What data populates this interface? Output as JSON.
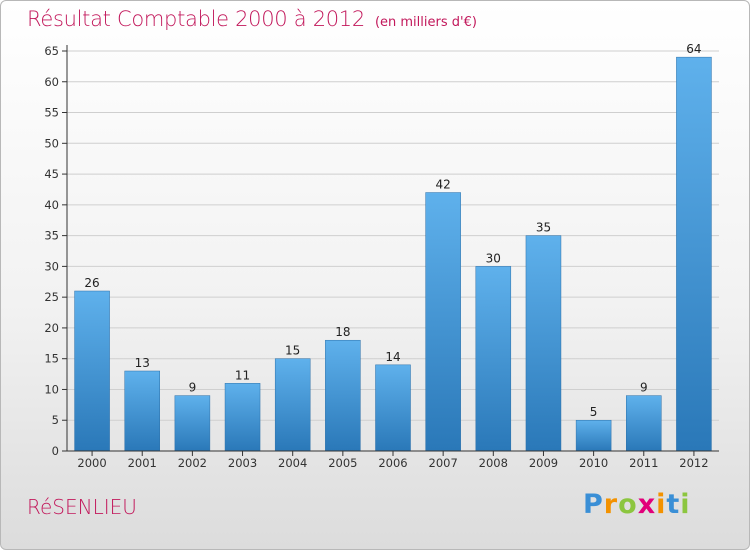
{
  "title": {
    "main": "Résultat Comptable 2000 à 2012",
    "unit": "(en milliers d'€)"
  },
  "city": "RéSENLIEU",
  "logo": {
    "letters": [
      "P",
      "r",
      "o",
      "x",
      "i",
      "t",
      "i"
    ],
    "colors": [
      "#3a8fd6",
      "#f39200",
      "#8cc63f",
      "#e2007a",
      "#f39200",
      "#3a8fd6",
      "#8cc63f"
    ],
    "text": "Proxiti"
  },
  "colors": {
    "accent": "#c2185b",
    "bar_top": "#5fb1ec",
    "bar_bottom": "#2a78b8",
    "grid": "#cfcfcf",
    "axis": "#333333"
  },
  "chart_data": {
    "type": "bar",
    "title": "Résultat Comptable 2000 à 2012",
    "xlabel": "",
    "ylabel": "",
    "categories": [
      "2000",
      "2001",
      "2002",
      "2003",
      "2004",
      "2005",
      "2006",
      "2007",
      "2008",
      "2009",
      "2010",
      "2011",
      "2012"
    ],
    "values": [
      26,
      13,
      9,
      11,
      15,
      18,
      14,
      42,
      30,
      35,
      5,
      9,
      64
    ],
    "ylim": [
      0,
      65
    ],
    "yticks": [
      0,
      5,
      10,
      15,
      20,
      25,
      30,
      35,
      40,
      45,
      50,
      55,
      60,
      65
    ],
    "grid": true
  }
}
